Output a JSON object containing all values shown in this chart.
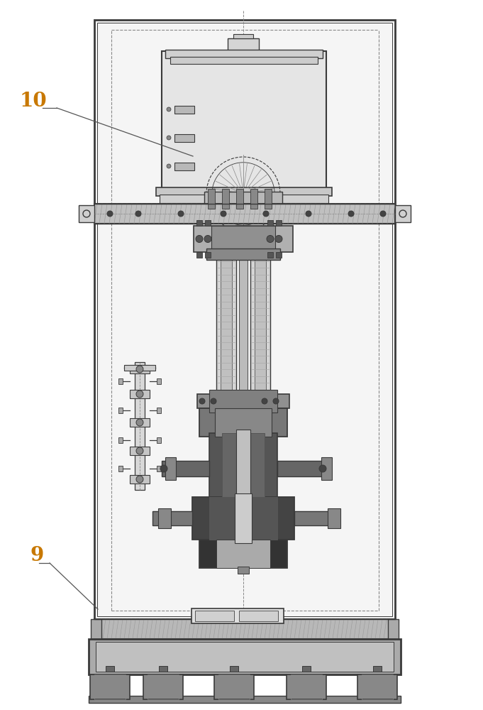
{
  "bg_color": "#ffffff",
  "lc": "#3a3a3a",
  "lc_med": "#555555",
  "lc_light": "#888888",
  "label_color": "#c87800",
  "fig_width": 6.81,
  "fig_height": 10.0,
  "label_10": "10",
  "label_9": "9"
}
